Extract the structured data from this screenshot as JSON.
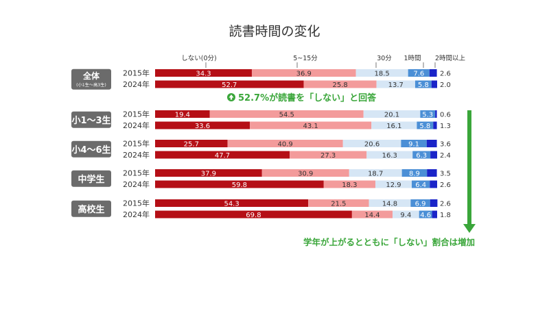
{
  "chart_data": {
    "type": "bar",
    "stacked": true,
    "orientation": "horizontal",
    "title": "読書時間の変化",
    "categories": [
      "しない(0分)",
      "5~15分",
      "30分",
      "1時間",
      "2時間以上"
    ],
    "colors": [
      "#b50f16",
      "#f39b9b",
      "#d6e6f5",
      "#4b8fd6",
      "#1a24c8"
    ],
    "groups": [
      {
        "label": "全体",
        "sublabel": "(小1生～高3生)",
        "rows": [
          {
            "year": "2015年",
            "values": [
              34.3,
              36.9,
              18.5,
              7.6,
              2.6
            ]
          },
          {
            "year": "2024年",
            "values": [
              52.7,
              25.8,
              13.7,
              5.8,
              2.0
            ]
          }
        ]
      },
      {
        "label": "小1～3生",
        "rows": [
          {
            "year": "2015年",
            "values": [
              19.4,
              54.5,
              20.1,
              5.3,
              0.6
            ]
          },
          {
            "year": "2024年",
            "values": [
              33.6,
              43.1,
              16.1,
              5.8,
              1.3
            ]
          }
        ]
      },
      {
        "label": "小4～6生",
        "rows": [
          {
            "year": "2015年",
            "values": [
              25.7,
              40.9,
              20.6,
              9.1,
              3.6
            ]
          },
          {
            "year": "2024年",
            "values": [
              47.7,
              27.3,
              16.3,
              6.3,
              2.4
            ]
          }
        ]
      },
      {
        "label": "中学生",
        "rows": [
          {
            "year": "2015年",
            "values": [
              37.9,
              30.9,
              18.7,
              8.9,
              3.5
            ]
          },
          {
            "year": "2024年",
            "values": [
              59.8,
              18.3,
              12.9,
              6.4,
              2.6
            ]
          }
        ]
      },
      {
        "label": "高校生",
        "rows": [
          {
            "year": "2015年",
            "values": [
              54.3,
              21.5,
              14.8,
              6.9,
              2.6
            ]
          },
          {
            "year": "2024年",
            "values": [
              69.8,
              14.4,
              9.4,
              4.6,
              1.8
            ]
          }
        ]
      }
    ],
    "annotations": {
      "overall": "52.7%が読書を「しない」と回答",
      "trend": "学年が上がるとともに「しない」割合は増加"
    },
    "accent_color": "#3aa63a",
    "label_color": "#6b6b6b"
  }
}
